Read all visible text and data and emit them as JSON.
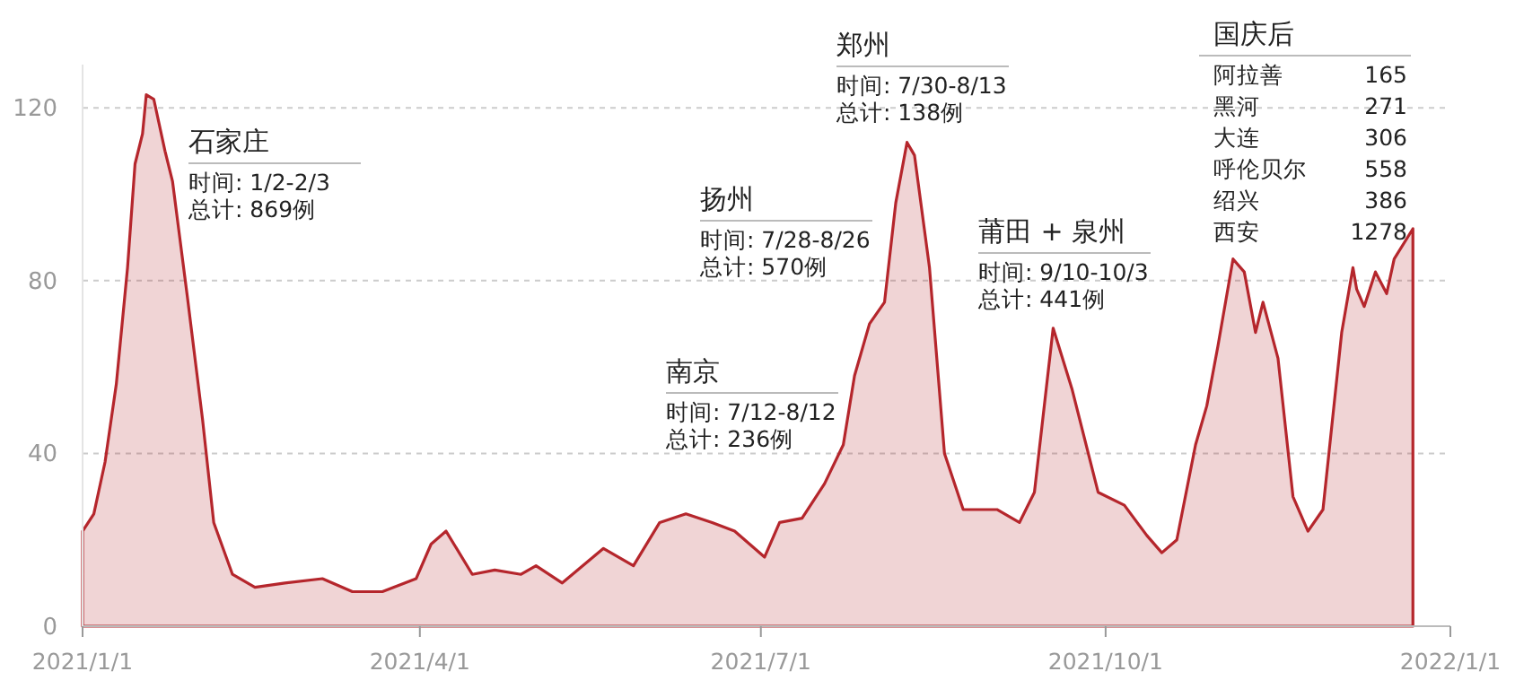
{
  "chart_data": {
    "type": "area",
    "x": [
      "2021-01-01",
      "2021-01-04",
      "2021-01-07",
      "2021-01-10",
      "2021-01-13",
      "2021-01-15",
      "2021-01-17",
      "2021-01-18",
      "2021-01-20",
      "2021-01-23",
      "2021-01-25",
      "2021-01-29",
      "2021-02-02",
      "2021-02-05",
      "2021-02-10",
      "2021-02-16",
      "2021-02-24",
      "2021-03-06",
      "2021-03-14",
      "2021-03-22",
      "2021-03-31",
      "2021-04-04",
      "2021-04-08",
      "2021-04-15",
      "2021-04-21",
      "2021-04-28",
      "2021-05-02",
      "2021-05-09",
      "2021-05-20",
      "2021-05-28",
      "2021-06-04",
      "2021-06-11",
      "2021-06-18",
      "2021-06-24",
      "2021-07-02",
      "2021-07-06",
      "2021-07-12",
      "2021-07-18",
      "2021-07-23",
      "2021-07-26",
      "2021-07-30",
      "2021-08-03",
      "2021-08-06",
      "2021-08-09",
      "2021-08-11",
      "2021-08-15",
      "2021-08-19",
      "2021-08-24",
      "2021-09-02",
      "2021-09-08",
      "2021-09-12",
      "2021-09-17",
      "2021-09-22",
      "2021-09-29",
      "2021-10-06",
      "2021-10-12",
      "2021-10-16",
      "2021-10-20",
      "2021-10-25",
      "2021-10-28",
      "2021-10-31",
      "2021-11-04",
      "2021-11-07",
      "2021-11-10",
      "2021-11-12",
      "2021-11-16",
      "2021-11-20",
      "2021-11-24",
      "2021-11-28",
      "2021-12-03",
      "2021-12-06",
      "2021-12-07",
      "2021-12-09",
      "2021-12-12",
      "2021-12-15",
      "2021-12-17",
      "2021-12-22"
    ],
    "series": [
      {
        "color": "#b5262c",
        "values": [
          22,
          26,
          38,
          56,
          83,
          107,
          114,
          123,
          122,
          110,
          103,
          76,
          48,
          24,
          12,
          9,
          10,
          11,
          8,
          8,
          11,
          19,
          22,
          12,
          13,
          12,
          14,
          10,
          18,
          14,
          24,
          26,
          24,
          22,
          16,
          24,
          25,
          33,
          42,
          58,
          70,
          75,
          98,
          112,
          109,
          83,
          40,
          27,
          27,
          24,
          31,
          69,
          55,
          31,
          28,
          21,
          17,
          20,
          42,
          51,
          65,
          85,
          82,
          68,
          75,
          62,
          30,
          22,
          27,
          68,
          83,
          78,
          74,
          82,
          77,
          85,
          92
        ]
      }
    ],
    "xlim": [
      "2021-01-01",
      "2022-01-01"
    ],
    "xticks": [
      {
        "value": "2021-01-01",
        "label": "2021/1/1"
      },
      {
        "value": "2021-04-01",
        "label": "2021/4/1"
      },
      {
        "value": "2021-07-01",
        "label": "2021/7/1"
      },
      {
        "value": "2021-10-01",
        "label": "2021/10/1"
      },
      {
        "value": "2022-01-01",
        "label": "2022/1/1"
      }
    ],
    "ylim": [
      0,
      130
    ],
    "yticks": [
      0,
      40,
      80,
      120
    ],
    "grid": "y",
    "annotations": [
      "石家庄",
      "时间: 1/2-2/3",
      "总计: 869例",
      "南京",
      "时间: 7/12-8/12",
      "总计: 236例",
      "扬州",
      "时间: 7/28-8/26",
      "总计: 570例",
      "郑州",
      "时间: 7/30-8/13",
      "总计: 138例",
      "莆田 + 泉州",
      "时间: 9/10-10/3",
      "总计: 441例",
      "国庆后",
      "阿拉善",
      "165",
      "黑河",
      "271",
      "大连",
      "306",
      "呼伦贝尔",
      "558",
      "绍兴",
      "386",
      "西安",
      "1278"
    ]
  }
}
